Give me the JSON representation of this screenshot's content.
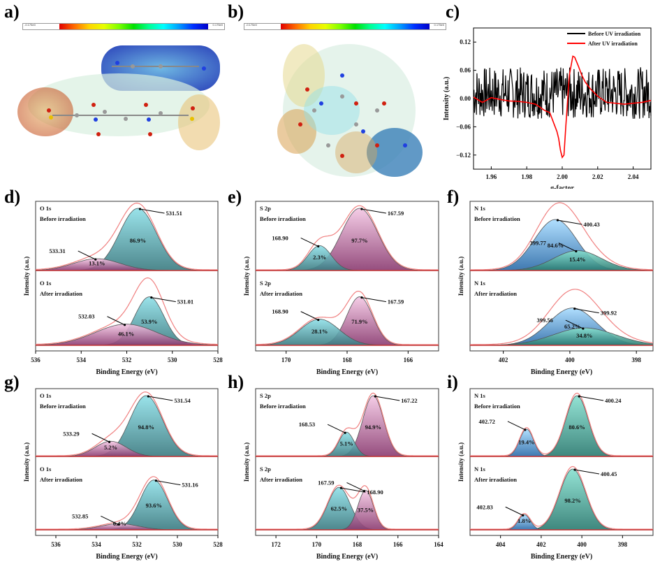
{
  "panels": {
    "a": {
      "label": "a)",
      "colorbar": {
        "min": "-0.175e0",
        "max": "0.175e0"
      }
    },
    "b": {
      "label": "b)",
      "colorbar": {
        "min": "-0.175e0",
        "max": "0.175e0"
      }
    },
    "c": {
      "label": "c)"
    },
    "d": {
      "label": "d)"
    },
    "e": {
      "label": "e)"
    },
    "f": {
      "label": "f)"
    },
    "g": {
      "label": "g)"
    },
    "h": {
      "label": "h)"
    },
    "i": {
      "label": "i)"
    }
  },
  "chart_data": [
    {
      "id": "c",
      "type": "line",
      "title": "",
      "xlabel": "g-factor",
      "ylabel": "Intensity (a.u.)",
      "xlim": [
        1.95,
        2.05
      ],
      "ylim": [
        -0.15,
        0.15
      ],
      "xticks": [
        "1.96",
        "1.98",
        "2.00",
        "2.02",
        "2.04"
      ],
      "yticks": [
        "0.12",
        "0.06",
        "0.00",
        "-0.06",
        "-0.12"
      ],
      "legend": "top-right",
      "series": [
        {
          "name": "Before UV irradiation",
          "color": "#000000",
          "description": "noise around 0.01, amplitude ~±0.06"
        },
        {
          "name": "After UV irradiation",
          "color": "#ff0000",
          "x": [
            1.95,
            1.955,
            1.96,
            1.965,
            1.97,
            1.975,
            1.98,
            1.985,
            1.99,
            1.993,
            1.995,
            1.997,
            1.998,
            1.999,
            2.0,
            2.001,
            2.002,
            2.004,
            2.006,
            2.007,
            2.009,
            2.011,
            2.013,
            2.016,
            2.02,
            2.025,
            2.03,
            2.035,
            2.04,
            2.045,
            2.05
          ],
          "y": [
            0.003,
            -0.008,
            0.002,
            -0.002,
            -0.005,
            -0.006,
            -0.008,
            -0.012,
            -0.025,
            -0.03,
            -0.05,
            -0.07,
            -0.085,
            -0.11,
            -0.125,
            -0.12,
            -0.06,
            0.05,
            0.09,
            0.088,
            0.07,
            0.05,
            0.035,
            0.02,
            0.005,
            -0.008,
            -0.01,
            -0.012,
            -0.01,
            -0.008,
            -0.004
          ]
        }
      ]
    },
    {
      "id": "d",
      "type": "area",
      "xlabel": "Binding Energy (eV)",
      "ylabel": "Intensity (a.u.)",
      "xlim": [
        536,
        528
      ],
      "xticks": [
        "536",
        "534",
        "532",
        "530",
        "528"
      ],
      "subplots": [
        {
          "element": "O 1s",
          "condition": "Before irradiation",
          "peaks": [
            {
              "position": 531.51,
              "percent": "86.9%",
              "label": "531.51",
              "height": 1.0,
              "fwhm": 1.9,
              "color": "teal"
            },
            {
              "position": 533.31,
              "percent": "13.1%",
              "label": "533.31",
              "height": 0.19,
              "fwhm": 2.4,
              "color": "pink"
            }
          ]
        },
        {
          "element": "O 1s",
          "condition": "After irradiation",
          "peaks": [
            {
              "position": 531.01,
              "percent": "53.9%",
              "label": "531.01",
              "height": 0.78,
              "fwhm": 1.5,
              "color": "teal"
            },
            {
              "position": 532.03,
              "percent": "46.1%",
              "label": "532.03",
              "height": 0.34,
              "fwhm": 3.2,
              "color": "pink"
            }
          ]
        }
      ]
    },
    {
      "id": "e",
      "type": "area",
      "xlabel": "Binding Energy (eV)",
      "ylabel": "Intensity (a.u.)",
      "xlim": [
        171,
        165
      ],
      "xticks": [
        "170",
        "168",
        "166"
      ],
      "subplots": [
        {
          "element": "S 2p",
          "condition": "Before irradiation",
          "peaks": [
            {
              "position": 167.59,
              "percent": "97.7%",
              "label": "167.59",
              "height": 1.0,
              "fwhm": 1.4,
              "color": "pink"
            },
            {
              "position": 168.9,
              "percent": "2.3%",
              "label": "168.90",
              "height": 0.4,
              "fwhm": 0.9,
              "color": "teal"
            }
          ]
        },
        {
          "element": "S 2p",
          "condition": "After irradiation",
          "peaks": [
            {
              "position": 167.59,
              "percent": "71.9%",
              "label": "167.59",
              "height": 0.78,
              "fwhm": 1.0,
              "color": "pink"
            },
            {
              "position": 168.9,
              "percent": "28.1%",
              "label": "168.90",
              "height": 0.42,
              "fwhm": 1.5,
              "color": "teal"
            }
          ]
        }
      ]
    },
    {
      "id": "f",
      "type": "area",
      "xlabel": "Binding Energy (eV)",
      "ylabel": "Intensity (a.u.)",
      "xlim": [
        403,
        397.5
      ],
      "xticks": [
        "402",
        "400",
        "398"
      ],
      "subplots": [
        {
          "element": "N 1s",
          "condition": "Before irradiation",
          "peaks": [
            {
              "position": 400.43,
              "percent": "84.6%",
              "label": "400.43",
              "height": 0.82,
              "fwhm": 1.5,
              "color": "blue"
            },
            {
              "position": 399.77,
              "percent": "15.4%",
              "label": "399.77",
              "height": 0.32,
              "fwhm": 1.7,
              "color": "green"
            }
          ]
        },
        {
          "element": "N 1s",
          "condition": "After irradiation",
          "peaks": [
            {
              "position": 399.92,
              "percent": "65.2%",
              "label": "399.92",
              "height": 0.6,
              "fwhm": 1.7,
              "color": "blue"
            },
            {
              "position": 399.56,
              "percent": "34.8%",
              "label": "399.56",
              "height": 0.28,
              "fwhm": 2.2,
              "color": "green"
            }
          ]
        }
      ]
    },
    {
      "id": "g",
      "type": "area",
      "xlabel": "Binding Energy (eV)",
      "ylabel": "Intensity (a.u.)",
      "xlim": [
        537,
        528
      ],
      "xticks": [
        "536",
        "534",
        "532",
        "530",
        "528"
      ],
      "subplots": [
        {
          "element": "O 1s",
          "condition": "Before irradiation",
          "peaks": [
            {
              "position": 531.54,
              "percent": "94.8%",
              "label": "531.54",
              "height": 1.0,
              "fwhm": 1.9,
              "color": "teal"
            },
            {
              "position": 533.29,
              "percent": "5.2%",
              "label": "533.29",
              "height": 0.25,
              "fwhm": 1.8,
              "color": "pink"
            }
          ]
        },
        {
          "element": "O 1s",
          "condition": "After irradiation",
          "peaks": [
            {
              "position": 531.16,
              "percent": "93.6%",
              "label": "531.16",
              "height": 0.82,
              "fwhm": 1.6,
              "color": "teal"
            },
            {
              "position": 532.85,
              "percent": "6.4%",
              "label": "532.85",
              "height": 0.1,
              "fwhm": 2.2,
              "color": "pink"
            }
          ]
        }
      ]
    },
    {
      "id": "h",
      "type": "area",
      "xlabel": "Binding Energy (eV)",
      "ylabel": "Intensity (a.u.)",
      "xlim": [
        173,
        164
      ],
      "xticks": [
        "172",
        "170",
        "168",
        "166",
        "164"
      ],
      "subplots": [
        {
          "element": "S 2p",
          "condition": "Before irradiation",
          "peaks": [
            {
              "position": 167.22,
              "percent": "94.9%",
              "label": "167.22",
              "height": 1.0,
              "fwhm": 1.2,
              "color": "pink"
            },
            {
              "position": 168.53,
              "percent": "5.1%",
              "label": "168.53",
              "height": 0.4,
              "fwhm": 0.9,
              "color": "teal"
            }
          ]
        },
        {
          "element": "S 2p",
          "condition": "After irradiation",
          "peaks": [
            {
              "position": 168.9,
              "percent": "62.5%",
              "label": "168.90",
              "height": 0.7,
              "fwhm": 1.3,
              "color": "teal"
            },
            {
              "position": 167.59,
              "percent": "37.5%",
              "label": "167.59",
              "height": 0.65,
              "fwhm": 0.9,
              "color": "pink"
            }
          ]
        }
      ]
    },
    {
      "id": "i",
      "type": "area",
      "xlabel": "Binding Energy (eV)",
      "ylabel": "Intensity (a.u.)",
      "xlim": [
        405.5,
        396.5
      ],
      "xticks": [
        "404",
        "402",
        "400",
        "398"
      ],
      "subplots": [
        {
          "element": "N 1s",
          "condition": "Before irradiation",
          "peaks": [
            {
              "position": 400.24,
              "percent": "80.6%",
              "label": "400.24",
              "height": 1.0,
              "fwhm": 1.3,
              "color": "green"
            },
            {
              "position": 402.72,
              "percent": "19.4%",
              "label": "402.72",
              "height": 0.45,
              "fwhm": 0.8,
              "color": "blue"
            }
          ]
        },
        {
          "element": "N 1s",
          "condition": "After irradiation",
          "peaks": [
            {
              "position": 400.45,
              "percent": "98.2%",
              "label": "400.45",
              "height": 1.0,
              "fwhm": 1.5,
              "color": "green"
            },
            {
              "position": 402.83,
              "percent": "1.8%",
              "label": "402.83",
              "height": 0.25,
              "fwhm": 0.7,
              "color": "blue"
            }
          ]
        }
      ]
    }
  ]
}
